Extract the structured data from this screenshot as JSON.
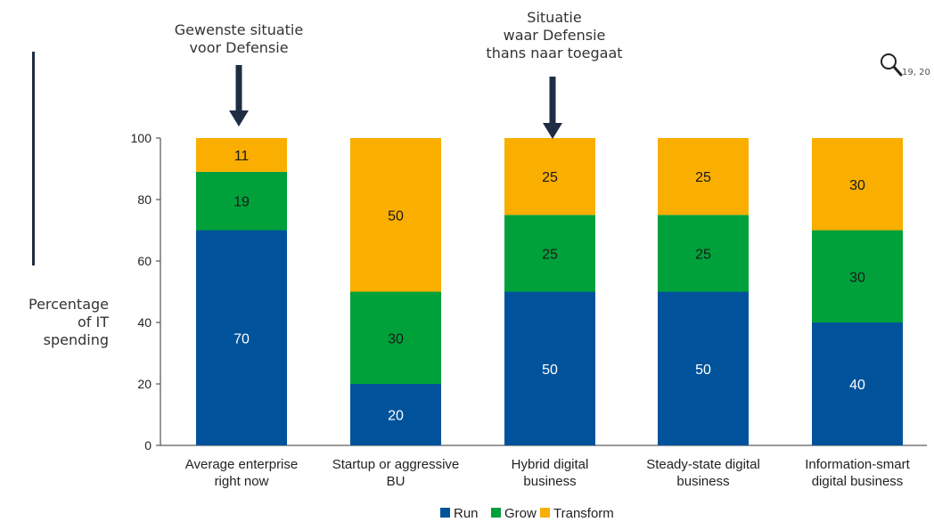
{
  "annotations": [
    {
      "lines": [
        "Gewenste situatie",
        "voor Defensie"
      ]
    },
    {
      "lines": [
        "Situatie",
        "waar Defensie",
        "thans naar toegaat"
      ]
    }
  ],
  "y_axis_label_lines": [
    "Percentage",
    "of IT",
    "spending"
  ],
  "zoom_text": "19, 20",
  "colors": {
    "run": "#00539b",
    "grow": "#00a13a",
    "transform": "#f9ae00",
    "arrow": "#1f2d44"
  },
  "chart_data": {
    "type": "bar",
    "stacked": true,
    "categories": [
      [
        "Average enterprise",
        "right now"
      ],
      [
        "Startup or aggressive",
        "BU"
      ],
      [
        "Hybrid digital",
        "business"
      ],
      [
        "Steady-state digital",
        "business"
      ],
      [
        "Information-smart",
        "digital business"
      ]
    ],
    "series": [
      {
        "name": "Run",
        "values": [
          70,
          20,
          50,
          50,
          40
        ]
      },
      {
        "name": "Grow",
        "values": [
          19,
          30,
          25,
          25,
          30
        ]
      },
      {
        "name": "Transform",
        "values": [
          11,
          50,
          25,
          25,
          30
        ]
      }
    ],
    "ylim": [
      0,
      100
    ],
    "yticks": [
      0,
      20,
      40,
      60,
      80,
      100
    ],
    "legend": "bottom",
    "grid": false
  }
}
